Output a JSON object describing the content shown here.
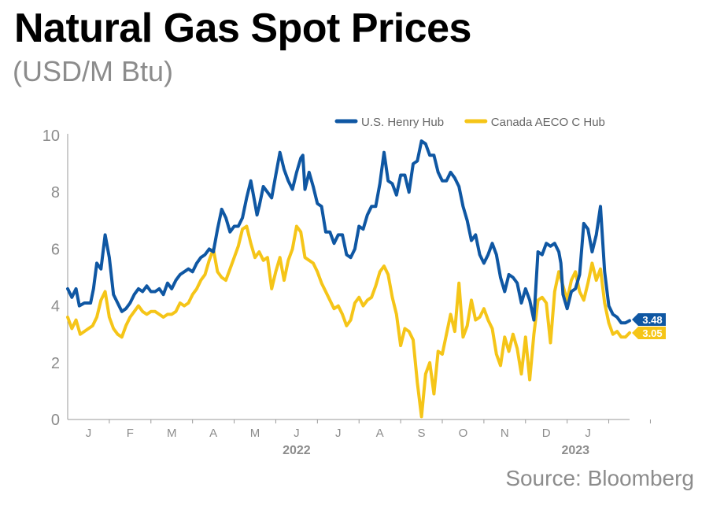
{
  "header": {
    "title": "Natural Gas Spot Prices",
    "subtitle": "(USD/M Btu)"
  },
  "source": "Source: Bloomberg",
  "colors": {
    "henry": "#0f57a3",
    "aeco": "#f5c518",
    "axis": "#8c8c8c"
  },
  "chart_data": {
    "type": "line",
    "title": "Natural Gas Spot Prices",
    "subtitle": "(USD/M Btu)",
    "ylim": [
      0,
      10
    ],
    "y_ticks": [
      0,
      2,
      4,
      6,
      8,
      10
    ],
    "x_range_months": [
      0,
      13.5
    ],
    "month_labels": [
      "J",
      "F",
      "M",
      "A",
      "M",
      "J",
      "J",
      "A",
      "S",
      "O",
      "N",
      "D",
      "J"
    ],
    "year_labels": [
      {
        "label": "2022",
        "month": 5.5
      },
      {
        "label": "2023",
        "month": 12.2
      }
    ],
    "legend": {
      "position": "top-right"
    },
    "grid": false,
    "series": [
      {
        "name": "U.S. Henry Hub",
        "color": "#0f57a3",
        "last_value": "3.48",
        "points": [
          [
            0.0,
            4.6
          ],
          [
            0.1,
            4.3
          ],
          [
            0.2,
            4.6
          ],
          [
            0.28,
            4.0
          ],
          [
            0.4,
            4.1
          ],
          [
            0.55,
            4.1
          ],
          [
            0.62,
            4.6
          ],
          [
            0.7,
            5.5
          ],
          [
            0.8,
            5.3
          ],
          [
            0.9,
            6.5
          ],
          [
            1.0,
            5.7
          ],
          [
            1.1,
            4.4
          ],
          [
            1.2,
            4.1
          ],
          [
            1.3,
            3.8
          ],
          [
            1.4,
            3.9
          ],
          [
            1.5,
            4.1
          ],
          [
            1.6,
            4.4
          ],
          [
            1.7,
            4.6
          ],
          [
            1.8,
            4.5
          ],
          [
            1.9,
            4.7
          ],
          [
            2.0,
            4.5
          ],
          [
            2.1,
            4.5
          ],
          [
            2.2,
            4.6
          ],
          [
            2.3,
            4.4
          ],
          [
            2.4,
            4.8
          ],
          [
            2.5,
            4.6
          ],
          [
            2.6,
            4.9
          ],
          [
            2.7,
            5.1
          ],
          [
            2.8,
            5.2
          ],
          [
            2.9,
            5.3
          ],
          [
            3.0,
            5.2
          ],
          [
            3.1,
            5.5
          ],
          [
            3.2,
            5.7
          ],
          [
            3.3,
            5.8
          ],
          [
            3.4,
            6.0
          ],
          [
            3.5,
            5.9
          ],
          [
            3.6,
            6.7
          ],
          [
            3.7,
            7.4
          ],
          [
            3.8,
            7.1
          ],
          [
            3.9,
            6.6
          ],
          [
            4.0,
            6.8
          ],
          [
            4.1,
            6.8
          ],
          [
            4.2,
            7.1
          ],
          [
            4.3,
            7.8
          ],
          [
            4.4,
            8.4
          ],
          [
            4.5,
            7.6
          ],
          [
            4.55,
            7.2
          ],
          [
            4.6,
            7.5
          ],
          [
            4.7,
            8.2
          ],
          [
            4.8,
            8.0
          ],
          [
            4.9,
            7.8
          ],
          [
            5.0,
            8.6
          ],
          [
            5.1,
            9.4
          ],
          [
            5.2,
            8.8
          ],
          [
            5.3,
            8.4
          ],
          [
            5.4,
            8.1
          ],
          [
            5.5,
            8.7
          ],
          [
            5.6,
            9.2
          ],
          [
            5.65,
            9.3
          ],
          [
            5.7,
            8.1
          ],
          [
            5.8,
            8.7
          ],
          [
            5.9,
            8.2
          ],
          [
            6.0,
            7.6
          ],
          [
            6.1,
            7.5
          ],
          [
            6.2,
            6.6
          ],
          [
            6.3,
            6.6
          ],
          [
            6.4,
            6.2
          ],
          [
            6.5,
            6.5
          ],
          [
            6.6,
            6.5
          ],
          [
            6.7,
            5.8
          ],
          [
            6.8,
            5.7
          ],
          [
            6.9,
            6.0
          ],
          [
            7.0,
            6.8
          ],
          [
            7.1,
            6.7
          ],
          [
            7.2,
            7.2
          ],
          [
            7.3,
            7.5
          ],
          [
            7.4,
            7.5
          ],
          [
            7.5,
            8.3
          ],
          [
            7.6,
            9.4
          ],
          [
            7.7,
            8.4
          ],
          [
            7.8,
            8.3
          ],
          [
            7.9,
            7.9
          ],
          [
            8.0,
            8.6
          ],
          [
            8.1,
            8.6
          ],
          [
            8.2,
            8.0
          ],
          [
            8.3,
            9.0
          ],
          [
            8.4,
            9.1
          ],
          [
            8.5,
            9.8
          ],
          [
            8.6,
            9.7
          ],
          [
            8.7,
            9.3
          ],
          [
            8.8,
            9.3
          ],
          [
            8.9,
            8.7
          ],
          [
            9.0,
            8.4
          ],
          [
            9.1,
            8.4
          ],
          [
            9.2,
            8.7
          ],
          [
            9.3,
            8.5
          ],
          [
            9.4,
            8.2
          ],
          [
            9.5,
            7.5
          ],
          [
            9.6,
            7.0
          ],
          [
            9.7,
            6.3
          ],
          [
            9.8,
            6.5
          ],
          [
            9.9,
            5.8
          ],
          [
            10.0,
            5.5
          ],
          [
            10.1,
            5.8
          ],
          [
            10.2,
            6.2
          ],
          [
            10.3,
            5.8
          ],
          [
            10.4,
            5.0
          ],
          [
            10.5,
            4.5
          ],
          [
            10.6,
            5.1
          ],
          [
            10.7,
            5.0
          ],
          [
            10.8,
            4.8
          ],
          [
            10.9,
            4.1
          ],
          [
            11.0,
            4.6
          ],
          [
            11.1,
            4.2
          ],
          [
            11.2,
            3.5
          ],
          [
            11.3,
            5.9
          ],
          [
            11.4,
            5.8
          ],
          [
            11.5,
            6.2
          ],
          [
            11.6,
            6.1
          ],
          [
            11.7,
            6.2
          ],
          [
            11.8,
            5.9
          ],
          [
            11.85,
            5.5
          ],
          [
            11.9,
            4.4
          ],
          [
            12.0,
            3.9
          ],
          [
            12.1,
            4.5
          ],
          [
            12.2,
            4.6
          ],
          [
            12.3,
            5.1
          ],
          [
            12.4,
            6.9
          ],
          [
            12.5,
            6.7
          ],
          [
            12.6,
            5.9
          ],
          [
            12.7,
            6.5
          ],
          [
            12.8,
            7.5
          ],
          [
            12.9,
            5.2
          ],
          [
            13.0,
            4.0
          ],
          [
            13.1,
            3.7
          ],
          [
            13.2,
            3.6
          ],
          [
            13.3,
            3.4
          ],
          [
            13.4,
            3.4
          ],
          [
            13.5,
            3.48
          ]
        ]
      },
      {
        "name": "Canada AECO C Hub",
        "color": "#f5c518",
        "last_value": "3.05",
        "points": [
          [
            0.0,
            3.6
          ],
          [
            0.1,
            3.2
          ],
          [
            0.2,
            3.5
          ],
          [
            0.3,
            3.0
          ],
          [
            0.4,
            3.1
          ],
          [
            0.5,
            3.2
          ],
          [
            0.6,
            3.3
          ],
          [
            0.7,
            3.6
          ],
          [
            0.8,
            4.2
          ],
          [
            0.9,
            4.5
          ],
          [
            1.0,
            3.6
          ],
          [
            1.1,
            3.2
          ],
          [
            1.2,
            3.0
          ],
          [
            1.3,
            2.9
          ],
          [
            1.4,
            3.3
          ],
          [
            1.5,
            3.6
          ],
          [
            1.6,
            3.8
          ],
          [
            1.7,
            4.0
          ],
          [
            1.8,
            3.8
          ],
          [
            1.9,
            3.7
          ],
          [
            2.0,
            3.8
          ],
          [
            2.1,
            3.8
          ],
          [
            2.2,
            3.7
          ],
          [
            2.3,
            3.6
          ],
          [
            2.4,
            3.7
          ],
          [
            2.5,
            3.7
          ],
          [
            2.6,
            3.8
          ],
          [
            2.7,
            4.1
          ],
          [
            2.8,
            4.0
          ],
          [
            2.9,
            4.1
          ],
          [
            3.0,
            4.4
          ],
          [
            3.1,
            4.6
          ],
          [
            3.2,
            4.9
          ],
          [
            3.3,
            5.1
          ],
          [
            3.4,
            5.6
          ],
          [
            3.5,
            6.0
          ],
          [
            3.6,
            5.2
          ],
          [
            3.7,
            5.0
          ],
          [
            3.8,
            4.9
          ],
          [
            3.9,
            5.3
          ],
          [
            4.0,
            5.7
          ],
          [
            4.1,
            6.1
          ],
          [
            4.2,
            6.7
          ],
          [
            4.3,
            6.8
          ],
          [
            4.4,
            6.2
          ],
          [
            4.5,
            5.7
          ],
          [
            4.6,
            5.9
          ],
          [
            4.7,
            5.6
          ],
          [
            4.8,
            5.7
          ],
          [
            4.9,
            4.6
          ],
          [
            5.0,
            5.2
          ],
          [
            5.1,
            5.7
          ],
          [
            5.2,
            4.9
          ],
          [
            5.3,
            5.6
          ],
          [
            5.4,
            6.0
          ],
          [
            5.5,
            6.8
          ],
          [
            5.6,
            6.6
          ],
          [
            5.7,
            5.7
          ],
          [
            5.8,
            5.6
          ],
          [
            5.9,
            5.5
          ],
          [
            6.0,
            5.2
          ],
          [
            6.1,
            4.8
          ],
          [
            6.2,
            4.5
          ],
          [
            6.3,
            4.2
          ],
          [
            6.4,
            3.9
          ],
          [
            6.5,
            4.0
          ],
          [
            6.6,
            3.7
          ],
          [
            6.7,
            3.3
          ],
          [
            6.8,
            3.5
          ],
          [
            6.9,
            4.1
          ],
          [
            7.0,
            4.3
          ],
          [
            7.1,
            4.0
          ],
          [
            7.2,
            4.2
          ],
          [
            7.3,
            4.3
          ],
          [
            7.4,
            4.7
          ],
          [
            7.5,
            5.2
          ],
          [
            7.6,
            5.4
          ],
          [
            7.7,
            5.1
          ],
          [
            7.8,
            4.3
          ],
          [
            7.9,
            3.7
          ],
          [
            8.0,
            2.6
          ],
          [
            8.1,
            3.2
          ],
          [
            8.2,
            3.1
          ],
          [
            8.3,
            2.8
          ],
          [
            8.4,
            1.3
          ],
          [
            8.5,
            0.1
          ],
          [
            8.6,
            1.6
          ],
          [
            8.7,
            2.0
          ],
          [
            8.8,
            0.9
          ],
          [
            8.9,
            2.4
          ],
          [
            9.0,
            2.3
          ],
          [
            9.1,
            3.0
          ],
          [
            9.2,
            3.7
          ],
          [
            9.3,
            3.1
          ],
          [
            9.4,
            4.8
          ],
          [
            9.5,
            2.9
          ],
          [
            9.6,
            3.3
          ],
          [
            9.7,
            4.2
          ],
          [
            9.8,
            3.5
          ],
          [
            9.9,
            3.6
          ],
          [
            10.0,
            3.9
          ],
          [
            10.1,
            3.5
          ],
          [
            10.2,
            3.2
          ],
          [
            10.3,
            2.3
          ],
          [
            10.4,
            1.9
          ],
          [
            10.5,
            2.9
          ],
          [
            10.6,
            2.4
          ],
          [
            10.7,
            3.0
          ],
          [
            10.8,
            2.5
          ],
          [
            10.9,
            1.6
          ],
          [
            11.0,
            2.9
          ],
          [
            11.1,
            1.4
          ],
          [
            11.2,
            3.0
          ],
          [
            11.3,
            4.2
          ],
          [
            11.4,
            4.3
          ],
          [
            11.5,
            4.1
          ],
          [
            11.6,
            2.7
          ],
          [
            11.7,
            4.5
          ],
          [
            11.8,
            5.2
          ],
          [
            11.9,
            4.7
          ],
          [
            12.0,
            4.2
          ],
          [
            12.1,
            4.9
          ],
          [
            12.2,
            5.2
          ],
          [
            12.3,
            4.5
          ],
          [
            12.4,
            4.2
          ],
          [
            12.5,
            4.8
          ],
          [
            12.6,
            5.5
          ],
          [
            12.7,
            4.9
          ],
          [
            12.8,
            5.3
          ],
          [
            12.9,
            4.1
          ],
          [
            13.0,
            3.4
          ],
          [
            13.1,
            3.0
          ],
          [
            13.2,
            3.1
          ],
          [
            13.3,
            2.9
          ],
          [
            13.4,
            2.9
          ],
          [
            13.5,
            3.05
          ]
        ]
      }
    ]
  }
}
